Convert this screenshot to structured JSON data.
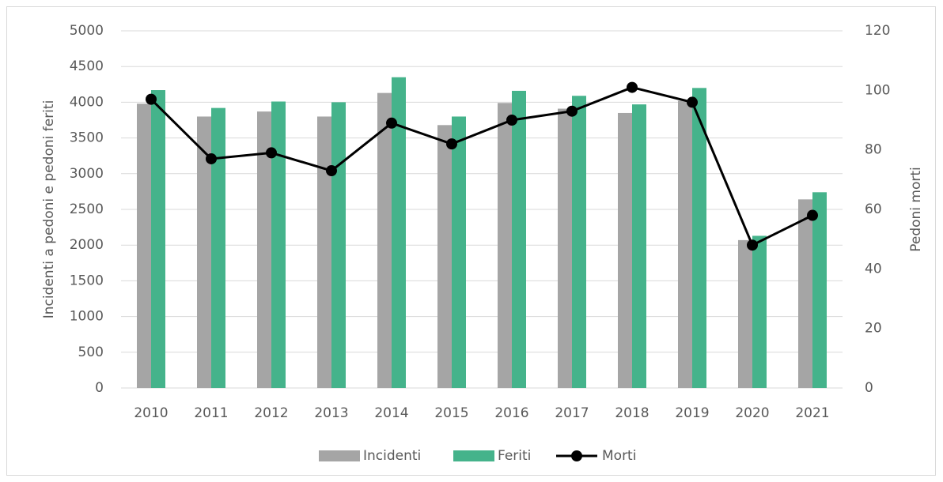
{
  "chart_data": {
    "type": "bar",
    "categories": [
      "2010",
      "2011",
      "2012",
      "2013",
      "2014",
      "2015",
      "2016",
      "2017",
      "2018",
      "2019",
      "2020",
      "2021"
    ],
    "series": [
      {
        "name": "Incidenti",
        "color": "#a5a5a5",
        "type": "bar",
        "values": [
          3980,
          3800,
          3870,
          3800,
          4130,
          3680,
          3990,
          3910,
          3850,
          4020,
          2070,
          2640
        ]
      },
      {
        "name": "Feriti",
        "color": "#45b38b",
        "type": "bar",
        "values": [
          4170,
          3920,
          4010,
          4000,
          4350,
          3800,
          4160,
          4090,
          3970,
          4200,
          2130,
          2740
        ]
      },
      {
        "name": "Morti",
        "color": "#000000",
        "type": "line",
        "axis": "y2",
        "values": [
          97,
          77,
          79,
          73,
          89,
          82,
          90,
          93,
          101,
          96,
          48,
          58
        ]
      }
    ],
    "ylabel": "Incidenti a pedoni e pedoni feriti",
    "y2label": "Pedoni morti",
    "ylim": [
      0,
      5000
    ],
    "yticks": [
      0,
      500,
      1000,
      1500,
      2000,
      2500,
      3000,
      3500,
      4000,
      4500,
      5000
    ],
    "y2lim": [
      0,
      120
    ],
    "y2ticks": [
      0,
      20,
      40,
      60,
      80,
      100,
      120
    ],
    "grid": true,
    "legend": "bottom"
  }
}
